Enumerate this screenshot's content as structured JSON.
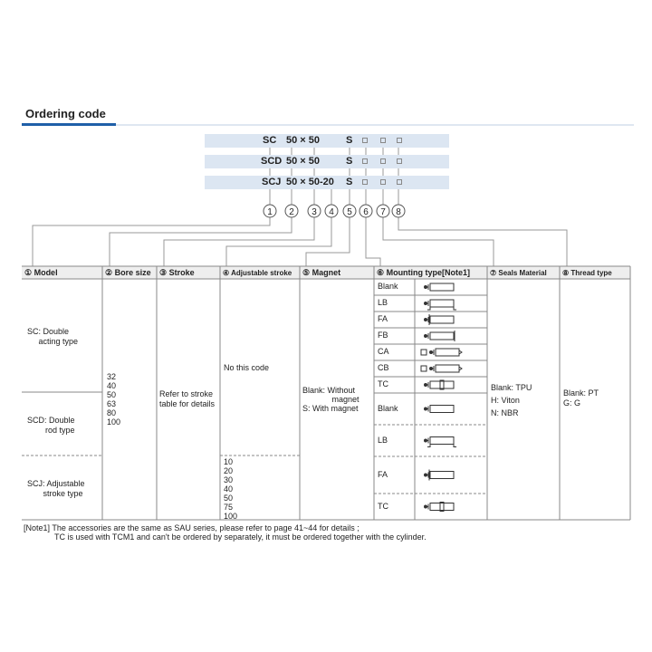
{
  "title": "Ordering code",
  "codes": [
    {
      "model": "SC",
      "size": "50 × 50",
      "magnet": "S"
    },
    {
      "model": "SCD",
      "size": "50 × 50",
      "magnet": "S"
    },
    {
      "model": "SCJ",
      "size": "50 × 50-20",
      "magnet": "S"
    }
  ],
  "circles": [
    "1",
    "2",
    "3",
    "4",
    "5",
    "6",
    "7",
    "8"
  ],
  "headers": [
    "① Model",
    "② Bore size",
    "③ Stroke",
    "④ Adjustable stroke",
    "⑤ Magnet",
    "⑥ Mounting type[Note1]",
    "⑦ Seals Material",
    "⑧ Thread type"
  ],
  "model": {
    "sc": "SC: Double\n     acting type",
    "scd": "SCD: Double\n        rod type",
    "scj": "SCJ: Adjustable\n       stroke type"
  },
  "bore": "32\n40\n50\n63\n80\n100",
  "stroke": "Refer to stroke\ntable for details",
  "adj": {
    "none": "No this code",
    "values": "10\n20\n30\n40\n50\n75\n100"
  },
  "magnet": "Blank: Without\n             magnet\nS: With magnet",
  "mounting": [
    {
      "code": "Blank",
      "icon": "basic-cylinder-icon"
    },
    {
      "code": "LB",
      "icon": "foot-mount-cylinder-icon"
    },
    {
      "code": "FA",
      "icon": "front-flange-cylinder-icon"
    },
    {
      "code": "FB",
      "icon": "rear-flange-cylinder-icon"
    },
    {
      "code": "CA",
      "icon": "single-clevis-cylinder-icon"
    },
    {
      "code": "CB",
      "icon": "double-clevis-cylinder-icon"
    },
    {
      "code": "TC",
      "icon": "trunnion-cylinder-icon"
    },
    {
      "code": "Blank",
      "icon": "basic-cylinder-icon"
    },
    {
      "code": "LB",
      "icon": "foot-mount-cylinder-icon"
    },
    {
      "code": "FA",
      "icon": "front-flange-cylinder-icon"
    },
    {
      "code": "TC",
      "icon": "trunnion-cylinder-icon"
    }
  ],
  "seals": "Blank: TPU\nH: Viton\nN: NBR",
  "thread": "Blank: PT\nG: G",
  "notes": [
    "[Note1] The accessories are the same as SAU series, please refer to page 41~44 for details ;",
    "TC is used with TCM1 and can't be ordered by separately, it must be ordered together with the cylinder."
  ],
  "colors": {
    "accent": "#1f5fa8",
    "band": "#dce6f2",
    "header": "#eeeeee"
  }
}
